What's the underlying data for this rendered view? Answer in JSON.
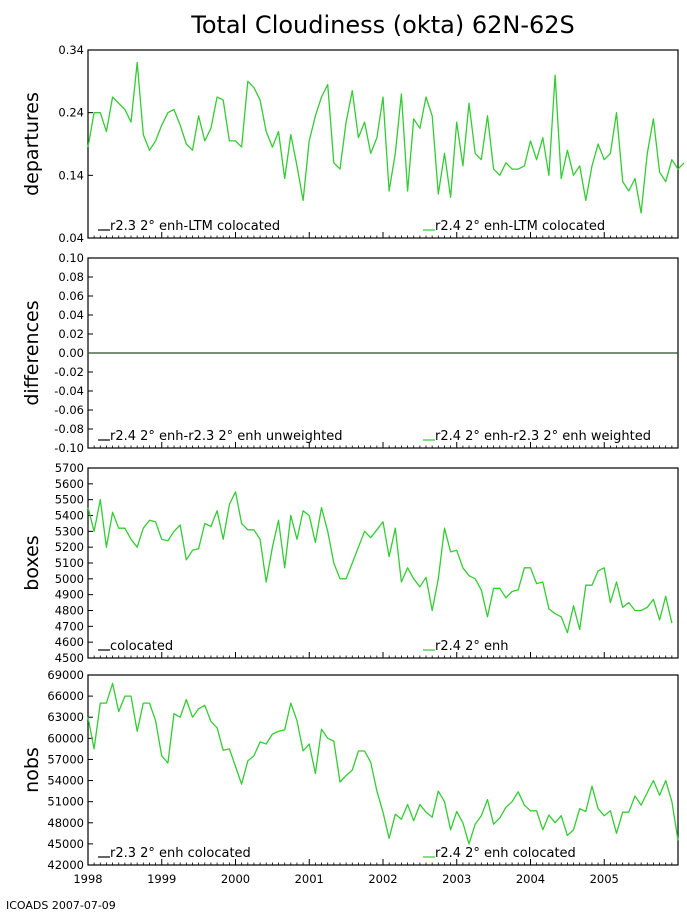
{
  "title": "Total Cloudiness (okta) 62N-62S",
  "footer": "ICOADS 2007-07-09",
  "chart_data": [
    {
      "type": "line",
      "ylabel": "departures",
      "ylim": [
        0.04,
        0.34
      ],
      "yticks": [
        "0.04",
        "0.14",
        "0.24",
        "0.34"
      ],
      "legend": [
        {
          "label": "r2.3 2° enh-LTM colocated",
          "color": "#000000"
        },
        {
          "label": "r2.4 2° enh-LTM colocated",
          "color": "#33cc33"
        }
      ],
      "series": [
        {
          "name": "r2.4 2° enh-LTM colocated",
          "color": "#33cc33",
          "values": [
            0.185,
            0.24,
            0.24,
            0.21,
            0.265,
            0.255,
            0.245,
            0.225,
            0.32,
            0.205,
            0.18,
            0.195,
            0.22,
            0.24,
            0.245,
            0.22,
            0.19,
            0.18,
            0.235,
            0.195,
            0.215,
            0.265,
            0.26,
            0.195,
            0.195,
            0.185,
            0.29,
            0.28,
            0.26,
            0.21,
            0.185,
            0.21,
            0.135,
            0.205,
            0.155,
            0.1,
            0.195,
            0.235,
            0.265,
            0.285,
            0.16,
            0.15,
            0.225,
            0.275,
            0.2,
            0.225,
            0.175,
            0.2,
            0.265,
            0.115,
            0.175,
            0.27,
            0.115,
            0.23,
            0.215,
            0.265,
            0.235,
            0.11,
            0.175,
            0.105,
            0.225,
            0.155,
            0.255,
            0.175,
            0.165,
            0.235,
            0.15,
            0.14,
            0.16,
            0.15,
            0.15,
            0.155,
            0.195,
            0.165,
            0.2,
            0.14,
            0.3,
            0.135,
            0.18,
            0.14,
            0.155,
            0.1,
            0.155,
            0.19,
            0.165,
            0.175,
            0.24,
            0.13,
            0.115,
            0.135,
            0.08,
            0.175,
            0.23,
            0.145,
            0.13,
            0.165,
            0.15,
            0.16
          ]
        }
      ]
    },
    {
      "type": "line",
      "ylabel": "differences",
      "ylim": [
        -0.1,
        0.1
      ],
      "yticks": [
        "-0.10",
        "-0.08",
        "-0.06",
        "-0.04",
        "-0.02",
        "0.00",
        "0.02",
        "0.04",
        "0.06",
        "0.08",
        "0.10"
      ],
      "legend": [
        {
          "label": "r2.4 2° enh-r2.3 2° enh unweighted",
          "color": "#000000"
        },
        {
          "label": "r2.4 2° enh-r2.3 2° enh weighted",
          "color": "#33cc33"
        }
      ],
      "series": [
        {
          "name": "r2.4 2° enh-r2.3 2° enh weighted",
          "color": "#2a4a2a",
          "constant": 0.0
        }
      ]
    },
    {
      "type": "line",
      "ylabel": "boxes",
      "ylim": [
        4500,
        5700
      ],
      "yticks": [
        "4500",
        "4600",
        "4700",
        "4800",
        "4900",
        "5000",
        "5100",
        "5200",
        "5300",
        "5400",
        "5500",
        "5600",
        "5700"
      ],
      "legend": [
        {
          "label": "colocated",
          "color": "#000000"
        },
        {
          "label": "r2.4 2° enh",
          "color": "#33cc33"
        }
      ],
      "series": [
        {
          "name": "r2.4 2° enh",
          "color": "#33cc33",
          "values": [
            5450,
            5300,
            5500,
            5200,
            5420,
            5320,
            5320,
            5250,
            5200,
            5320,
            5370,
            5360,
            5250,
            5240,
            5300,
            5340,
            5120,
            5180,
            5190,
            5350,
            5330,
            5430,
            5250,
            5470,
            5550,
            5350,
            5310,
            5310,
            5250,
            4980,
            5200,
            5370,
            5070,
            5400,
            5250,
            5430,
            5400,
            5230,
            5450,
            5300,
            5100,
            5000,
            5000,
            5100,
            5200,
            5300,
            5260,
            5310,
            5360,
            5140,
            5320,
            4980,
            5070,
            5000,
            4950,
            5010,
            4800,
            5000,
            5320,
            5170,
            5180,
            5070,
            5020,
            5000,
            4930,
            4760,
            4940,
            4940,
            4880,
            4920,
            4930,
            5070,
            5070,
            4970,
            4980,
            4810,
            4780,
            4760,
            4660,
            4830,
            4680,
            4960,
            4960,
            5050,
            5070,
            4850,
            4980,
            4820,
            4850,
            4800,
            4800,
            4820,
            4870,
            4740,
            4890,
            4720
          ]
        }
      ]
    },
    {
      "type": "line",
      "ylabel": "nobs",
      "ylim": [
        42000,
        69000
      ],
      "yticks": [
        "42000",
        "45000",
        "48000",
        "51000",
        "54000",
        "57000",
        "60000",
        "63000",
        "66000",
        "69000"
      ],
      "legend": [
        {
          "label": "r2.3 2° enh colocated",
          "color": "#000000"
        },
        {
          "label": "r2.4 2° enh colocated",
          "color": "#33cc33"
        }
      ],
      "series": [
        {
          "name": "r2.4 2° enh colocated",
          "color": "#33cc33",
          "values": [
            63000,
            58500,
            65000,
            65000,
            67800,
            63800,
            66000,
            66000,
            61000,
            65000,
            65000,
            62500,
            57500,
            56500,
            63500,
            63000,
            65500,
            63000,
            64200,
            64700,
            62400,
            61500,
            58300,
            58500,
            56000,
            53500,
            56800,
            57500,
            59500,
            59200,
            60600,
            61000,
            61200,
            65000,
            62500,
            58200,
            59200,
            55000,
            61300,
            60000,
            59600,
            53800,
            54700,
            55500,
            58200,
            58200,
            56600,
            52500,
            49500,
            45800,
            49200,
            48500,
            50600,
            48300,
            50600,
            49500,
            48800,
            52500,
            51000,
            47000,
            49600,
            48000,
            45000,
            47800,
            49000,
            51300,
            47800,
            48700,
            50200,
            51000,
            52400,
            50500,
            49700,
            49700,
            47000,
            49100,
            48000,
            49000,
            46200,
            47000,
            50000,
            49600,
            53200,
            50000,
            49000,
            49700,
            46500,
            49500,
            49500,
            51800,
            50500,
            52300,
            54000,
            51900,
            54000,
            51000,
            45500
          ]
        }
      ]
    }
  ],
  "x_axis": {
    "xlim": [
      1998.0,
      2006.0
    ],
    "ticks": [
      {
        "value": 1998,
        "label": "1998"
      },
      {
        "value": 1999,
        "label": "1999"
      },
      {
        "value": 2000,
        "label": "2000"
      },
      {
        "value": 2001,
        "label": "2001"
      },
      {
        "value": 2002,
        "label": "2002"
      },
      {
        "value": 2003,
        "label": "2003"
      },
      {
        "value": 2004,
        "label": "2004"
      },
      {
        "value": 2005,
        "label": "2005"
      }
    ],
    "start": 1998.0,
    "step": 0.0833333
  }
}
